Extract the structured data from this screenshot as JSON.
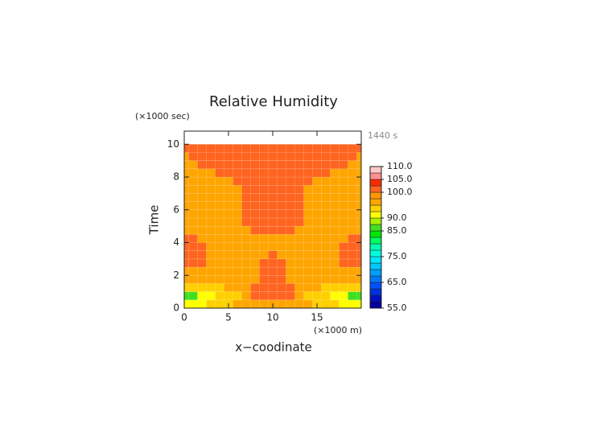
{
  "chart_data": {
    "type": "contour",
    "title": "Relative Humidity",
    "y_unit": "(×1000 sec)",
    "x_unit": "(×1000 m)",
    "time_label": "1440 s",
    "ylabel": "Time",
    "xlabel": "x−coodinate",
    "xlim": [
      0,
      20
    ],
    "ylim": [
      0,
      10.8
    ],
    "xticks": [
      0,
      5,
      10,
      15
    ],
    "yticks": [
      0,
      2,
      4,
      6,
      8,
      10
    ],
    "x": [
      0,
      1,
      2,
      3,
      4,
      5,
      6,
      7,
      8,
      9,
      10,
      11,
      12,
      13,
      14,
      15,
      16,
      17,
      18,
      19,
      20
    ],
    "y": [
      0.25,
      0.75,
      1.25,
      1.75,
      2.25,
      2.75,
      3.25,
      3.75,
      4.25,
      4.75,
      5.25,
      5.75,
      6.25,
      6.75,
      7.25,
      7.75,
      8.25,
      8.75,
      9.25,
      9.75
    ],
    "z": [
      [
        91,
        91,
        91,
        93.5,
        93.5,
        93.5,
        97,
        97,
        97,
        97,
        97,
        97,
        97,
        97,
        97,
        93.5,
        93.5,
        93.5,
        91,
        91,
        91
      ],
      [
        87,
        87,
        91,
        91,
        93.5,
        93.5,
        93.5,
        97,
        101,
        101,
        101,
        101,
        101,
        97,
        93.5,
        93.5,
        93.5,
        91,
        91,
        87,
        87
      ],
      [
        93.5,
        93.5,
        93.5,
        93.5,
        93.5,
        97,
        97,
        97,
        101,
        101,
        101,
        101,
        101,
        97,
        97,
        97,
        93.5,
        93.5,
        93.5,
        93.5,
        93.5
      ],
      [
        97,
        97,
        97,
        97,
        97,
        97,
        97,
        97,
        97,
        101,
        101,
        101,
        97,
        97,
        97,
        97,
        97,
        97,
        97,
        97,
        97
      ],
      [
        97,
        97,
        97,
        97,
        97,
        97,
        97,
        97,
        97,
        101,
        101,
        101,
        97,
        97,
        97,
        97,
        97,
        97,
        97,
        97,
        97
      ],
      [
        101,
        101,
        101,
        97,
        97,
        97,
        97,
        97,
        97,
        101,
        101,
        101,
        97,
        97,
        97,
        97,
        97,
        97,
        101,
        101,
        101
      ],
      [
        101,
        101,
        101,
        97,
        97,
        97,
        97,
        97,
        97,
        97,
        101,
        97,
        97,
        97,
        97,
        97,
        97,
        97,
        101,
        101,
        101
      ],
      [
        101,
        101,
        101,
        97,
        97,
        97,
        97,
        97,
        97,
        97,
        97,
        97,
        97,
        97,
        97,
        97,
        97,
        97,
        101,
        101,
        101
      ],
      [
        101,
        101,
        97,
        97,
        97,
        97,
        97,
        97,
        97,
        97,
        97,
        97,
        97,
        97,
        97,
        97,
        97,
        97,
        97,
        101,
        101
      ],
      [
        97,
        97,
        97,
        97,
        97,
        97,
        97,
        97,
        101,
        101,
        101,
        101,
        101,
        97,
        97,
        97,
        97,
        97,
        97,
        97,
        97
      ],
      [
        97,
        97,
        97,
        97,
        97,
        97,
        97,
        101,
        101,
        101,
        101,
        101,
        101,
        101,
        97,
        97,
        97,
        97,
        97,
        97,
        97
      ],
      [
        97,
        97,
        97,
        97,
        97,
        97,
        97,
        101,
        101,
        101,
        101,
        101,
        101,
        101,
        97,
        97,
        97,
        97,
        97,
        97,
        97
      ],
      [
        97,
        97,
        97,
        97,
        97,
        97,
        97,
        101,
        101,
        101,
        101,
        101,
        101,
        101,
        97,
        97,
        97,
        97,
        97,
        97,
        97
      ],
      [
        97,
        97,
        97,
        97,
        97,
        97,
        97,
        101,
        101,
        101,
        101,
        101,
        101,
        101,
        97,
        97,
        97,
        97,
        97,
        97,
        97
      ],
      [
        97,
        97,
        97,
        97,
        97,
        97,
        97,
        101,
        101,
        101,
        101,
        101,
        101,
        101,
        97,
        97,
        97,
        97,
        97,
        97,
        97
      ],
      [
        97,
        97,
        97,
        97,
        97,
        97,
        101,
        101,
        101,
        101,
        101,
        101,
        101,
        101,
        101,
        97,
        97,
        97,
        97,
        97,
        97
      ],
      [
        97,
        97,
        97,
        97,
        101,
        101,
        101,
        101,
        101,
        101,
        101,
        101,
        101,
        101,
        101,
        101,
        101,
        97,
        97,
        97,
        97
      ],
      [
        97,
        97,
        101,
        101,
        101,
        101,
        101,
        101,
        101,
        101,
        101,
        101,
        101,
        101,
        101,
        101,
        101,
        101,
        101,
        97,
        97
      ],
      [
        97,
        101,
        101,
        101,
        101,
        101,
        101,
        101,
        101,
        101,
        101,
        101,
        101,
        101,
        101,
        101,
        101,
        101,
        101,
        101,
        97
      ],
      [
        101,
        101,
        101,
        101,
        101,
        101,
        101,
        101,
        101,
        101,
        101,
        101,
        101,
        101,
        101,
        101,
        101,
        101,
        101,
        101,
        101
      ]
    ],
    "levels": [
      55,
      57.5,
      60,
      62.5,
      65,
      67.5,
      70,
      72.5,
      75,
      77.5,
      80,
      82.5,
      85,
      87.5,
      90,
      92.5,
      95,
      97.5,
      100,
      102.5,
      105,
      107.5,
      110
    ],
    "colors": [
      "#00009c",
      "#0010c0",
      "#0030e0",
      "#0050ff",
      "#0078ff",
      "#00a0ff",
      "#00c8ff",
      "#00e8ff",
      "#00ffe0",
      "#00ffb0",
      "#00ff60",
      "#00e800",
      "#40e020",
      "#a8f000",
      "#ffff00",
      "#ffd000",
      "#ffa500",
      "#ff9800",
      "#ff6420",
      "#ff2a00",
      "#ff9090",
      "#ffc8c8"
    ],
    "colorbar_ticks": [
      {
        "value": 55,
        "label": "55.0"
      },
      {
        "value": 65,
        "label": "65.0"
      },
      {
        "value": 75,
        "label": "75.0"
      },
      {
        "value": 85,
        "label": "85.0"
      },
      {
        "value": 90,
        "label": "90.0"
      },
      {
        "value": 100,
        "label": "100.0"
      },
      {
        "value": 105,
        "label": "105.0"
      },
      {
        "value": 110,
        "label": "110.0"
      }
    ]
  }
}
